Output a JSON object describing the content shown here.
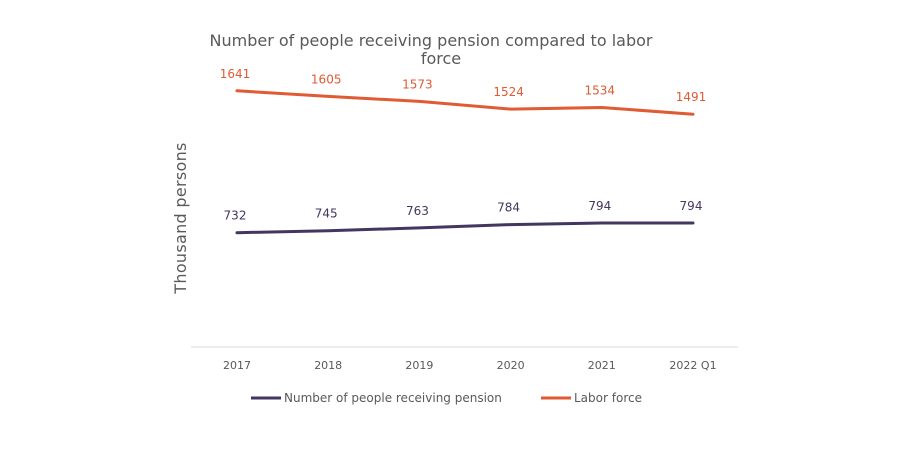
{
  "chart_data": {
    "type": "line",
    "title_lines": [
      "Number of people receiving pension compared to labor",
      "force"
    ],
    "ylabel": "Thousand persons",
    "xlabel": "",
    "categories": [
      "2017",
      "2018",
      "2019",
      "2020",
      "2021",
      "2022 Q1"
    ],
    "ylim": [
      0,
      1800
    ],
    "grid": false,
    "legend_position": "bottom",
    "series": [
      {
        "name": "Number of people receiving pension",
        "color": "#433660",
        "values": [
          732,
          745,
          763,
          784,
          794,
          794
        ]
      },
      {
        "name": "Labor force",
        "color": "#e05a33",
        "values": [
          1641,
          1605,
          1573,
          1524,
          1534,
          1491
        ]
      }
    ]
  }
}
